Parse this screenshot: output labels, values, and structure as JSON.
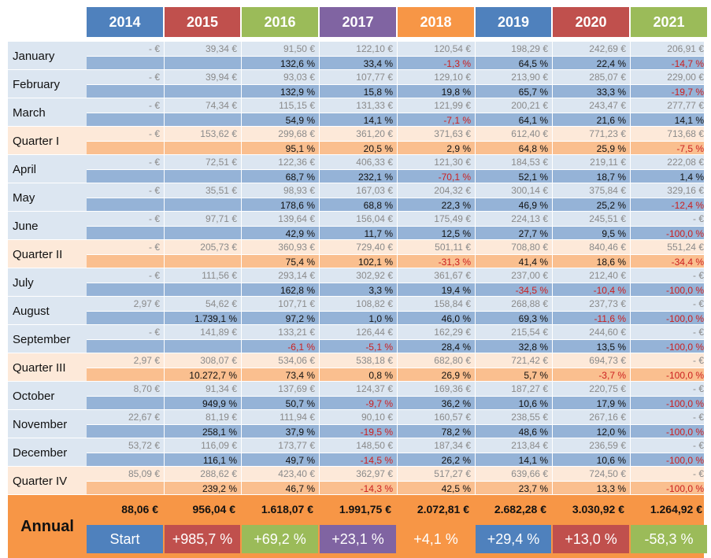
{
  "years": [
    "2014",
    "2015",
    "2016",
    "2017",
    "2018",
    "2019",
    "2020",
    "2021"
  ],
  "colors": {
    "header": [
      "#4f81bd",
      "#c0504d",
      "#9bbb59",
      "#8064a2",
      "#f79646",
      "#4f81bd",
      "#c0504d",
      "#9bbb59"
    ],
    "month_bg": "#dce6f1",
    "month_pct_bg": "#95b3d7",
    "quarter_bg": "#fde9d9",
    "quarter_pct_bg": "#fabf8f",
    "annual_bg": "#f79646",
    "negative_text": "#cc1f1f"
  },
  "rows": [
    {
      "label": "January",
      "type": "month",
      "values": [
        "-   €",
        "39,34 €",
        "91,50 €",
        "122,10 €",
        "120,54 €",
        "198,29 €",
        "242,69 €",
        "206,91 €"
      ],
      "pcts": [
        "",
        "",
        "132,6 %",
        "33,4 %",
        "-1,3 %",
        "64,5 %",
        "22,4 %",
        "-14,7 %"
      ]
    },
    {
      "label": "February",
      "type": "month",
      "values": [
        "-   €",
        "39,94 €",
        "93,03 €",
        "107,77 €",
        "129,10 €",
        "213,90 €",
        "285,07 €",
        "229,00 €"
      ],
      "pcts": [
        "",
        "",
        "132,9 %",
        "15,8 %",
        "19,8 %",
        "65,7 %",
        "33,3 %",
        "-19,7 %"
      ]
    },
    {
      "label": "March",
      "type": "month",
      "values": [
        "-   €",
        "74,34 €",
        "115,15 €",
        "131,33 €",
        "121,99 €",
        "200,21 €",
        "243,47 €",
        "277,77 €"
      ],
      "pcts": [
        "",
        "",
        "54,9 %",
        "14,1 %",
        "-7,1 %",
        "64,1 %",
        "21,6 %",
        "14,1 %"
      ]
    },
    {
      "label": "Quarter I",
      "type": "quarter",
      "values": [
        "-   €",
        "153,62 €",
        "299,68 €",
        "361,20 €",
        "371,63 €",
        "612,40 €",
        "771,23 €",
        "713,68 €"
      ],
      "pcts": [
        "",
        "",
        "95,1 %",
        "20,5 %",
        "2,9 %",
        "64,8 %",
        "25,9 %",
        "-7,5 %"
      ]
    },
    {
      "label": "April",
      "type": "month",
      "values": [
        "-   €",
        "72,51 €",
        "122,36 €",
        "406,33 €",
        "121,30 €",
        "184,53 €",
        "219,11 €",
        "222,08 €"
      ],
      "pcts": [
        "",
        "",
        "68,7 %",
        "232,1 %",
        "-70,1 %",
        "52,1 %",
        "18,7 %",
        "1,4 %"
      ]
    },
    {
      "label": "May",
      "type": "month",
      "values": [
        "-   €",
        "35,51 €",
        "98,93 €",
        "167,03 €",
        "204,32 €",
        "300,14 €",
        "375,84 €",
        "329,16 €"
      ],
      "pcts": [
        "",
        "",
        "178,6 %",
        "68,8 %",
        "22,3 %",
        "46,9 %",
        "25,2 %",
        "-12,4 %"
      ]
    },
    {
      "label": "June",
      "type": "month",
      "values": [
        "-   €",
        "97,71 €",
        "139,64 €",
        "156,04 €",
        "175,49 €",
        "224,13 €",
        "245,51 €",
        "-   €"
      ],
      "pcts": [
        "",
        "",
        "42,9 %",
        "11,7 %",
        "12,5 %",
        "27,7 %",
        "9,5 %",
        "-100,0 %"
      ]
    },
    {
      "label": "Quarter II",
      "type": "quarter",
      "values": [
        "-   €",
        "205,73 €",
        "360,93 €",
        "729,40 €",
        "501,11 €",
        "708,80 €",
        "840,46 €",
        "551,24 €"
      ],
      "pcts": [
        "",
        "",
        "75,4 %",
        "102,1 %",
        "-31,3 %",
        "41,4 %",
        "18,6 %",
        "-34,4 %"
      ]
    },
    {
      "label": "July",
      "type": "month",
      "values": [
        "-   €",
        "111,56 €",
        "293,14 €",
        "302,92 €",
        "361,67 €",
        "237,00 €",
        "212,40 €",
        "-   €"
      ],
      "pcts": [
        "",
        "",
        "162,8 %",
        "3,3 %",
        "19,4 %",
        "-34,5 %",
        "-10,4 %",
        "-100,0 %"
      ]
    },
    {
      "label": "August",
      "type": "month",
      "values": [
        "2,97 €",
        "54,62 €",
        "107,71 €",
        "108,82 €",
        "158,84 €",
        "268,88 €",
        "237,73 €",
        "-   €"
      ],
      "pcts": [
        "",
        "1.739,1 %",
        "97,2 %",
        "1,0 %",
        "46,0 %",
        "69,3 %",
        "-11,6 %",
        "-100,0 %"
      ]
    },
    {
      "label": "September",
      "type": "month",
      "values": [
        "-   €",
        "141,89 €",
        "133,21 €",
        "126,44 €",
        "162,29 €",
        "215,54 €",
        "244,60 €",
        "-   €"
      ],
      "pcts": [
        "",
        "",
        "-6,1 %",
        "-5,1 %",
        "28,4 %",
        "32,8 %",
        "13,5 %",
        "-100,0 %"
      ]
    },
    {
      "label": "Quarter III",
      "type": "quarter",
      "values": [
        "2,97 €",
        "308,07 €",
        "534,06 €",
        "538,18 €",
        "682,80 €",
        "721,42 €",
        "694,73 €",
        "-   €"
      ],
      "pcts": [
        "",
        "10.272,7 %",
        "73,4 %",
        "0,8 %",
        "26,9 %",
        "5,7 %",
        "-3,7 %",
        "-100,0 %"
      ]
    },
    {
      "label": "October",
      "type": "month",
      "values": [
        "8,70 €",
        "91,34 €",
        "137,69 €",
        "124,37 €",
        "169,36 €",
        "187,27 €",
        "220,75 €",
        "-   €"
      ],
      "pcts": [
        "",
        "949,9 %",
        "50,7 %",
        "-9,7 %",
        "36,2 %",
        "10,6 %",
        "17,9 %",
        "-100,0 %"
      ]
    },
    {
      "label": "November",
      "type": "month",
      "values": [
        "22,67 €",
        "81,19 €",
        "111,94 €",
        "90,10 €",
        "160,57 €",
        "238,55 €",
        "267,16 €",
        "-   €"
      ],
      "pcts": [
        "",
        "258,1 %",
        "37,9 %",
        "-19,5 %",
        "78,2 %",
        "48,6 %",
        "12,0 %",
        "-100,0 %"
      ]
    },
    {
      "label": "December",
      "type": "month",
      "values": [
        "53,72 €",
        "116,09 €",
        "173,77 €",
        "148,50 €",
        "187,34 €",
        "213,84 €",
        "236,59 €",
        "-   €"
      ],
      "pcts": [
        "",
        "116,1 %",
        "49,7 %",
        "-14,5 %",
        "26,2 %",
        "14,1 %",
        "10,6 %",
        "-100,0 %"
      ]
    },
    {
      "label": "Quarter IV",
      "type": "quarter",
      "values": [
        "85,09 €",
        "288,62 €",
        "423,40 €",
        "362,97 €",
        "517,27 €",
        "639,66 €",
        "724,50 €",
        "-   €"
      ],
      "pcts": [
        "",
        "239,2 %",
        "46,7 %",
        "-14,3 %",
        "42,5 %",
        "23,7 %",
        "13,3 %",
        "-100,0 %"
      ]
    }
  ],
  "annual": {
    "label": "Annual",
    "totals": [
      "88,06 €",
      "956,04 €",
      "1.618,07 €",
      "1.991,75 €",
      "2.072,81 €",
      "2.682,28 €",
      "3.030,92 €",
      "1.264,92 €"
    ],
    "changes": [
      "Start",
      "+985,7 %",
      "+69,2 %",
      "+23,1 %",
      "+4,1 %",
      "+29,4 %",
      "+13,0 %",
      "-58,3 %"
    ]
  }
}
